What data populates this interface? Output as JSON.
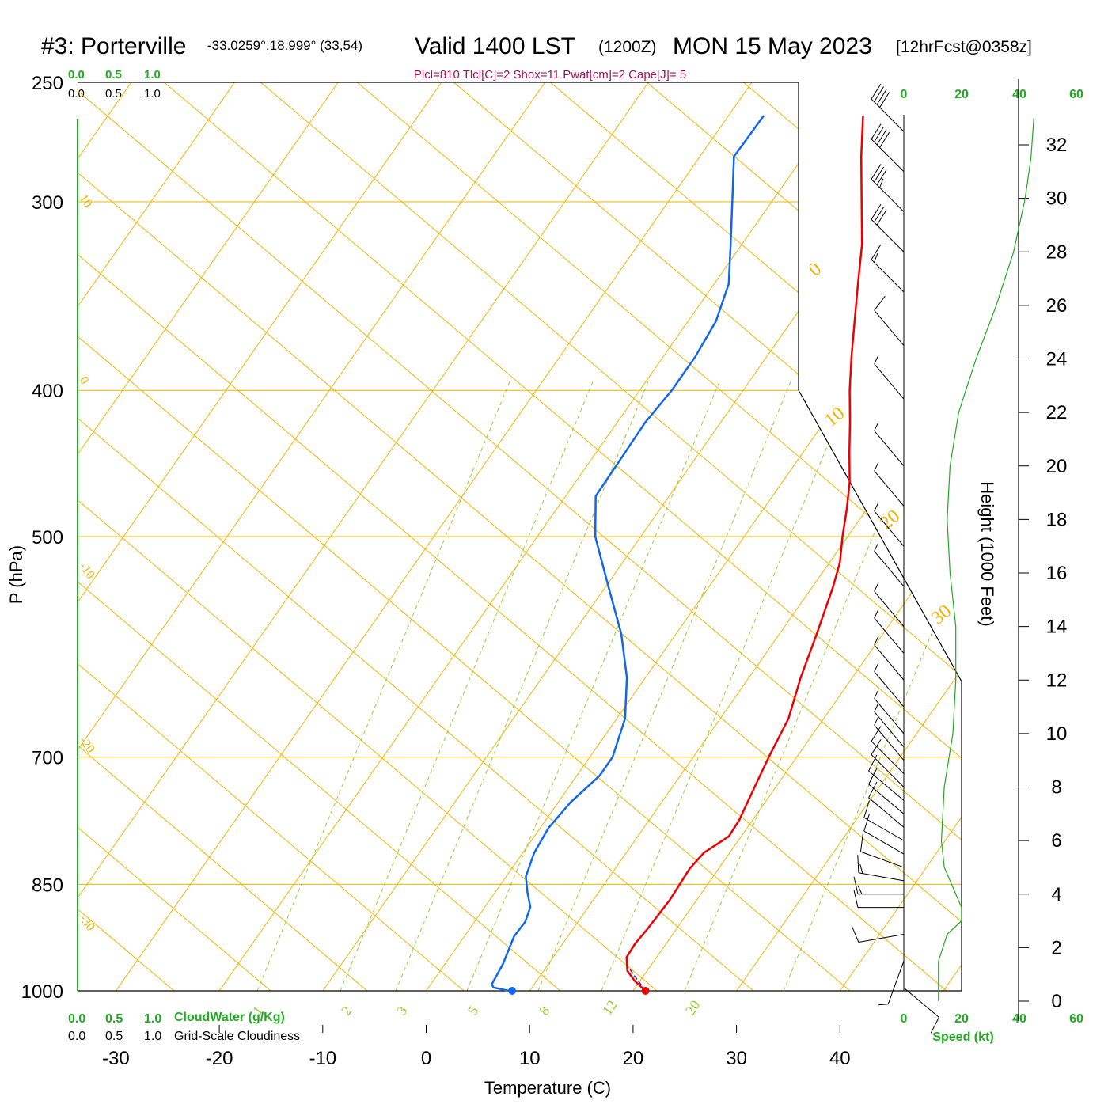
{
  "title": {
    "station": "#3: Porterville",
    "coords": "-33.0259°,18.999° (33,54)",
    "valid": "Valid 1400 LST",
    "utc": "(1200Z)",
    "date": "MON 15 May 2023",
    "fcst": "[12hrFcst@0358z]"
  },
  "indices": "Plcl=810 Tlcl[C]=2 Shox=11 Pwat[cm]=2 Cape[J]= 5",
  "cloud_axis": {
    "ticks": [
      "0.0",
      "0.5",
      "1.0"
    ],
    "cloudwater_label": "CloudWater (g/Kg)",
    "cloudiness_label": "Grid-Scale Cloudiness"
  },
  "wind_axis": {
    "top_ticks": [
      "0",
      "20",
      "40",
      "60"
    ],
    "bottom_ticks": [
      "0",
      "20",
      "40",
      "60"
    ],
    "label": "Speed (kt)"
  },
  "mixing_ratio_labels": [
    "1",
    "2",
    "3",
    "5",
    "8",
    "12",
    "20"
  ],
  "isotherm_labels_left": [
    "10",
    "0",
    "-10",
    "-20",
    "-30"
  ],
  "isotherm_labels_right": [
    "0",
    "10",
    "20",
    "30"
  ],
  "colors": {
    "temperature": "#ee0000",
    "dewpoint": "#1166ee",
    "grid": "#f0b400",
    "moist_adiabat": "#99cc33",
    "speed": "#22aa22",
    "indices": "#aa1155"
  },
  "chart_data": {
    "type": "line",
    "subtype": "skew-t log-p sounding",
    "xlabel": "Temperature (C)",
    "ylabel": "P (hPa)",
    "right_ylabel": "Height (1000 Feet)",
    "xlim": [
      -30,
      40
    ],
    "ylim": [
      1000,
      250
    ],
    "x_ticks": [
      "-30",
      "-20",
      "-10",
      "0",
      "10",
      "20",
      "30",
      "40"
    ],
    "pressure_ticks": [
      "250",
      "300",
      "400",
      "500",
      "700",
      "850",
      "1000"
    ],
    "height_ticks": [
      "32",
      "30",
      "28",
      "26",
      "24",
      "22",
      "20",
      "18",
      "16",
      "14",
      "12",
      "10",
      "8",
      "6",
      "4",
      "2",
      "0"
    ],
    "series": [
      {
        "name": "Temperature",
        "points": [
          [
            1000,
            21.2
          ],
          [
            985,
            19.5
          ],
          [
            970,
            18.1
          ],
          [
            950,
            17.1
          ],
          [
            930,
            17.0
          ],
          [
            910,
            17.2
          ],
          [
            890,
            17.3
          ],
          [
            870,
            17.4
          ],
          [
            850,
            17.3
          ],
          [
            830,
            17.2
          ],
          [
            810,
            17.5
          ],
          [
            790,
            18.8
          ],
          [
            770,
            18.7
          ],
          [
            750,
            18.3
          ],
          [
            720,
            17.7
          ],
          [
            700,
            17.3
          ],
          [
            660,
            16.6
          ],
          [
            620,
            15.0
          ],
          [
            580,
            13.6
          ],
          [
            540,
            12.0
          ],
          [
            520,
            11.0
          ],
          [
            500,
            9.5
          ],
          [
            480,
            8.1
          ],
          [
            460,
            6.5
          ],
          [
            440,
            4.5
          ],
          [
            420,
            2.5
          ],
          [
            400,
            0.3
          ],
          [
            380,
            -1.8
          ],
          [
            360,
            -3.9
          ],
          [
            340,
            -6.1
          ],
          [
            320,
            -8.4
          ],
          [
            300,
            -11.3
          ],
          [
            280,
            -14.4
          ],
          [
            263,
            -17.0
          ]
        ]
      },
      {
        "name": "Dewpoint",
        "points": [
          [
            1000,
            8.0
          ],
          [
            995,
            6.3
          ],
          [
            990,
            5.9
          ],
          [
            960,
            5.6
          ],
          [
            920,
            4.8
          ],
          [
            900,
            4.9
          ],
          [
            880,
            4.4
          ],
          [
            860,
            3.1
          ],
          [
            840,
            1.9
          ],
          [
            810,
            1.1
          ],
          [
            780,
            0.8
          ],
          [
            750,
            1.2
          ],
          [
            720,
            2.2
          ],
          [
            700,
            2.2
          ],
          [
            660,
            0.8
          ],
          [
            620,
            -1.8
          ],
          [
            580,
            -5.3
          ],
          [
            540,
            -9.7
          ],
          [
            500,
            -14.4
          ],
          [
            470,
            -17.1
          ],
          [
            440,
            -17.2
          ],
          [
            420,
            -17.3
          ],
          [
            400,
            -16.9
          ],
          [
            380,
            -16.9
          ],
          [
            360,
            -17.3
          ],
          [
            340,
            -18.6
          ],
          [
            320,
            -21.1
          ],
          [
            300,
            -23.8
          ],
          [
            280,
            -26.7
          ],
          [
            263,
            -26.6
          ]
        ]
      }
    ],
    "parcel_trace": [
      [
        1000,
        21.2
      ],
      [
        990,
        20.3
      ],
      [
        975,
        18.9
      ],
      [
        965,
        18.0
      ]
    ],
    "wind_barbs": {
      "heights_kft": [
        0.5,
        1.5,
        2.5,
        3.5,
        4.0,
        4.5,
        5.0,
        5.5,
        6.0,
        6.5,
        7.0,
        7.5,
        8.0,
        8.5,
        9.0,
        9.5,
        10.0,
        11.0,
        12.0,
        13.0,
        14.0,
        15.5,
        17.0,
        18.5,
        20.0,
        22.5,
        24.5,
        26.5,
        28.0,
        29.5,
        31.0,
        32.5
      ],
      "speeds_kt": [
        12,
        8,
        12,
        14,
        15,
        15,
        14,
        12,
        10,
        10,
        10,
        10,
        10,
        10,
        9,
        8,
        7,
        7,
        7,
        6,
        6,
        6,
        6,
        6,
        7,
        8,
        10,
        15,
        30,
        35,
        40,
        40
      ],
      "directions_deg": [
        130,
        200,
        260,
        270,
        270,
        280,
        290,
        300,
        300,
        310,
        310,
        310,
        315,
        315,
        320,
        320,
        320,
        320,
        320,
        320,
        320,
        320,
        320,
        320,
        320,
        320,
        320,
        315,
        315,
        315,
        315,
        315
      ]
    },
    "speed_profile": {
      "heights_kft": [
        0,
        0.5,
        1.5,
        2.5,
        3.0,
        3.5,
        4.0,
        5.0,
        6.0,
        8.0,
        10.0,
        12.0,
        14.0,
        16.0,
        18.0,
        20.0,
        22.0,
        24.0,
        26.0,
        28.0,
        30.0,
        31.5,
        33.0
      ],
      "speeds_kt": [
        12,
        12,
        12,
        15,
        20,
        20,
        18,
        14,
        13,
        14,
        17,
        18,
        18,
        16,
        15,
        16,
        19,
        25,
        32,
        38,
        42,
        44,
        45
      ]
    },
    "grid": true,
    "legend": "none"
  }
}
